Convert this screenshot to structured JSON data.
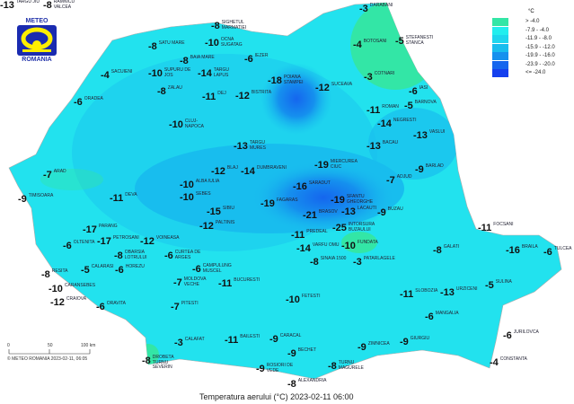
{
  "logo": {
    "top": "METEO",
    "bottom": "ROMANIA"
  },
  "legend": {
    "unit": "°C",
    "classes": [
      {
        "label": "> -4.0",
        "color": "#33e6a6"
      },
      {
        "label": "-7.9 - -4.0",
        "color": "#22eeee"
      },
      {
        "label": "-11.9 - -8.0",
        "color": "#1ed6ee"
      },
      {
        "label": "-15.9 - -12.0",
        "color": "#18bdee"
      },
      {
        "label": "-19.9 - -16.0",
        "color": "#1590ee"
      },
      {
        "label": "-23.9 - -20.0",
        "color": "#1566ee"
      },
      {
        "label": "<= -24.0",
        "color": "#1540ee"
      }
    ]
  },
  "scale": {
    "ticks": [
      "0",
      "50",
      "100 km"
    ],
    "credit": "© METEO ROMANIA 2023-02-11, 06:05"
  },
  "title": "Temperatura aerului (°C) 2023-02-11 06:00",
  "stations": [
    {
      "name": "DARABANI",
      "value": "-3"
    },
    {
      "name": "STEFANESTI STANCA",
      "value": "-5"
    },
    {
      "name": "BOTOSANI",
      "value": "-4"
    },
    {
      "name": "COTNARI",
      "value": "-3"
    },
    {
      "name": "IASI",
      "value": "-6"
    },
    {
      "name": "BARNOVA",
      "value": "-5"
    },
    {
      "name": "ROMAN",
      "value": "-11"
    },
    {
      "name": "NEGRESTI",
      "value": "-14"
    },
    {
      "name": "VASLUI",
      "value": "-13"
    },
    {
      "name": "BACAU",
      "value": "-13"
    },
    {
      "name": "BARLAD",
      "value": "-9"
    },
    {
      "name": "ADJUD",
      "value": "-7"
    },
    {
      "name": "SIGHETUL MARMATIEI",
      "value": "-8"
    },
    {
      "name": "OCNA SUGATAG",
      "value": "-10"
    },
    {
      "name": "SATU MARE",
      "value": "-8"
    },
    {
      "name": "BAIA MARE",
      "value": "-8"
    },
    {
      "name": "SACUIENI",
      "value": "-4"
    },
    {
      "name": "SUPURU DE JOS",
      "value": "-10"
    },
    {
      "name": "TARGU LAPUS",
      "value": "-14"
    },
    {
      "name": "IEZER",
      "value": "-6"
    },
    {
      "name": "ZALAU",
      "value": "-8"
    },
    {
      "name": "DEJ",
      "value": "-11"
    },
    {
      "name": "BISTRITA",
      "value": "-12"
    },
    {
      "name": "ORADEA",
      "value": "-6"
    },
    {
      "name": "POIANA STAMPEI",
      "value": "-18"
    },
    {
      "name": "SUCEAVA",
      "value": "-12"
    },
    {
      "name": "CLUJ-NAPOCA",
      "value": "-10"
    },
    {
      "name": "TARGU MURES",
      "value": "-13"
    },
    {
      "name": "ARAD",
      "value": "-7"
    },
    {
      "name": "TIMISOARA",
      "value": "-9"
    },
    {
      "name": "DEVA",
      "value": "-11"
    },
    {
      "name": "ALBA IULIA",
      "value": "-10"
    },
    {
      "name": "SEBES",
      "value": "-10"
    },
    {
      "name": "BLAJ",
      "value": "-12"
    },
    {
      "name": "DUMBRAVENI",
      "value": "-14"
    },
    {
      "name": "SIBIU",
      "value": "-15"
    },
    {
      "name": "PALTINIS",
      "value": "-12"
    },
    {
      "name": "FAGARAS",
      "value": "-19"
    },
    {
      "name": "SARADUT",
      "value": "-16"
    },
    {
      "name": "MIERCUREA CIUC",
      "value": "-19"
    },
    {
      "name": "SFANTU GHEORGHE",
      "value": "-19"
    },
    {
      "name": "BRASOV",
      "value": "-21"
    },
    {
      "name": "INTORSURA BUZAULUI",
      "value": "-25"
    },
    {
      "name": "LACAUTI",
      "value": "-13"
    },
    {
      "name": "PREDEAL",
      "value": "-11"
    },
    {
      "name": "VARFU OMU",
      "value": "-14"
    },
    {
      "name": "SINAIA 1500",
      "value": "-8"
    },
    {
      "name": "PETROSANI",
      "value": "-17"
    },
    {
      "name": "PARANG",
      "value": "-17"
    },
    {
      "name": "OBARSIA LOTRULUI",
      "value": "-8"
    },
    {
      "name": "VOINEASA",
      "value": "-12"
    },
    {
      "name": "HOREZU",
      "value": "-6"
    },
    {
      "name": "CURTEA DE ARGES",
      "value": "-6"
    },
    {
      "name": "CAMPULUNG MUSCEL",
      "value": "-6"
    },
    {
      "name": "FUNDATA",
      "value": "-10"
    },
    {
      "name": "PATARLAGELE",
      "value": "-3"
    },
    {
      "name": "BUZAU",
      "value": "-9"
    },
    {
      "name": "FOCSANI",
      "value": "-11"
    },
    {
      "name": "GALATI",
      "value": "-8"
    },
    {
      "name": "BRAILA",
      "value": "-16"
    },
    {
      "name": "TULCEA",
      "value": "-6"
    },
    {
      "name": "SULINA",
      "value": "-5"
    },
    {
      "name": "JURILOVCA",
      "value": "-6"
    },
    {
      "name": "CONSTANTA",
      "value": "-4"
    },
    {
      "name": "MANGALIA",
      "value": "-6"
    },
    {
      "name": "SLOBOZIA",
      "value": "-11"
    },
    {
      "name": "URZICENI",
      "value": "-13"
    },
    {
      "name": "FETESTI",
      "value": "-10"
    },
    {
      "name": "BUCURESTI",
      "value": "-11"
    },
    {
      "name": "PITESTI",
      "value": "-7"
    },
    {
      "name": "CRAIOVA",
      "value": "-12"
    },
    {
      "name": "DROBETA TURNU SEVERIN",
      "value": "-8"
    },
    {
      "name": "CALAFAT",
      "value": "-3"
    },
    {
      "name": "BAILESTI",
      "value": "-11"
    },
    {
      "name": "CARACAL",
      "value": "-9"
    },
    {
      "name": "BECHET",
      "value": "-9"
    },
    {
      "name": "ROSIORI DE VEDE",
      "value": "-9"
    },
    {
      "name": "ALEXANDRIA",
      "value": "-8"
    },
    {
      "name": "TURNU MAGURELE",
      "value": "-8"
    },
    {
      "name": "ZIMNICEA",
      "value": "-9"
    },
    {
      "name": "GIURGIU",
      "value": "-9"
    },
    {
      "name": "OLTENITA",
      "value": "-6"
    },
    {
      "name": "CALARASI",
      "value": "-5"
    },
    {
      "name": "RESITA",
      "value": "-8"
    },
    {
      "name": "CARANSEBES",
      "value": "-10"
    },
    {
      "name": "ORAVITA",
      "value": "-6"
    },
    {
      "name": "MOLDOVA VECHE",
      "value": "-7"
    },
    {
      "name": "TARGU JIU",
      "value": "-13"
    },
    {
      "name": "RAMNICU VALCEA",
      "value": "-8"
    }
  ]
}
